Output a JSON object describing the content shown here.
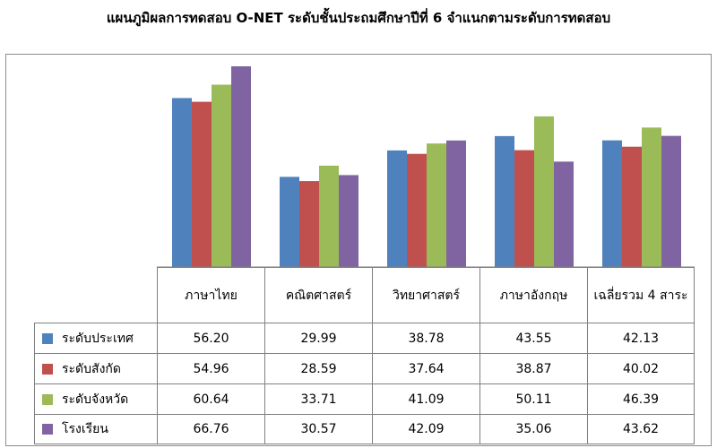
{
  "title": "แผนภูมิผลการทดสอบ O-NET ระดับชั้นประถมศึกษาปีที่ 6 จำแนกตามระดับการทดสอบ",
  "chart_data": {
    "type": "bar",
    "title": "แผนภูมิผลการทดสอบ O-NET ระดับชั้นประถมศึกษาปีที่ 6 จำแนกตามระดับการทดสอบ",
    "categories": [
      "ภาษาไทย",
      "คณิตศาสตร์",
      "วิทยาศาสตร์",
      "ภาษาอังกฤษ",
      "เฉลี่ยรวม 4 สาระ"
    ],
    "series": [
      {
        "name": "ระดับประเทศ",
        "color": "#4F81BD",
        "values": [
          "56.20",
          "29.99",
          "38.78",
          "43.55",
          "42.13"
        ]
      },
      {
        "name": "ระดับสังกัด",
        "color": "#C0504D",
        "values": [
          "54.96",
          "28.59",
          "37.64",
          "38.87",
          "40.02"
        ]
      },
      {
        "name": "ระดับจังหวัด",
        "color": "#9BBB59",
        "values": [
          "60.64",
          "33.71",
          "41.09",
          "50.11",
          "46.39"
        ]
      },
      {
        "name": "โรงเรียน",
        "color": "#8064A2",
        "values": [
          "66.76",
          "30.57",
          "42.09",
          "35.06",
          "43.62"
        ]
      }
    ],
    "xlabel": "",
    "ylabel": "",
    "ylim": [
      0,
      70
    ],
    "grid": false,
    "legend": "data-table"
  }
}
